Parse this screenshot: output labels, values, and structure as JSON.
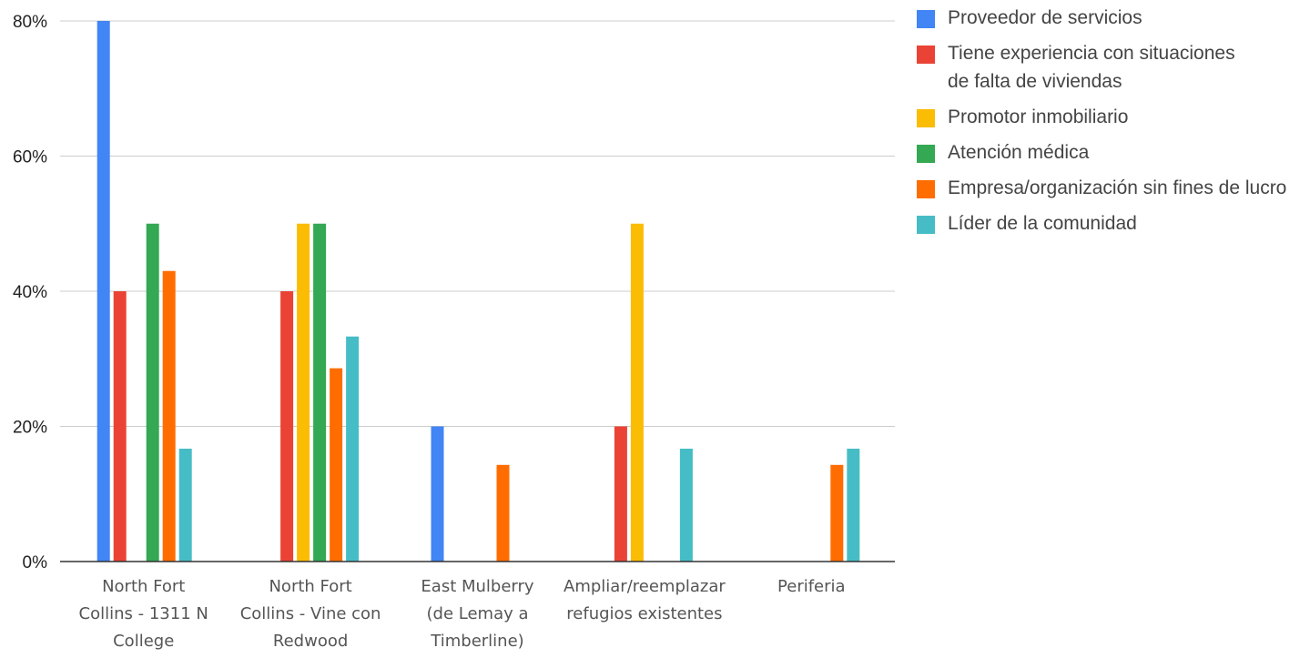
{
  "chart_data": {
    "type": "bar",
    "title": "",
    "xlabel": "",
    "ylabel": "",
    "ylim": [
      0,
      80
    ],
    "yticks": [
      {
        "value": 0,
        "label": "0%"
      },
      {
        "value": 20,
        "label": "20%"
      },
      {
        "value": 40,
        "label": "40%"
      },
      {
        "value": 60,
        "label": "60%"
      },
      {
        "value": 80,
        "label": "80%"
      }
    ],
    "grid": true,
    "legend_position": "top-right",
    "categories": [
      {
        "name": "North Fort Collins - 1311 N College",
        "lines": [
          "North Fort",
          "Collins - 1311 N",
          "College"
        ]
      },
      {
        "name": "North Fort Collins - Vine con Redwood",
        "lines": [
          "North Fort",
          "Collins - Vine con",
          "Redwood"
        ]
      },
      {
        "name": "East Mulberry (de Lemay a Timberline)",
        "lines": [
          "East Mulberry",
          "(de Lemay a",
          "Timberline)"
        ]
      },
      {
        "name": "Ampliar/reemplazar refugios existentes",
        "lines": [
          "Ampliar/reemplazar",
          "refugios existentes"
        ]
      },
      {
        "name": "Periferia",
        "lines": [
          "Periferia"
        ]
      }
    ],
    "series": [
      {
        "name": "Proveedor de servicios",
        "legend_lines": [
          "Proveedor de servicios"
        ],
        "color": "#4285F4",
        "values": [
          80,
          0,
          20,
          0,
          0
        ]
      },
      {
        "name": "Tiene experiencia con situaciones de falta de viviendas",
        "legend_lines": [
          "Tiene experiencia con situaciones",
          "de falta de viviendas"
        ],
        "color": "#EA4335",
        "values": [
          40,
          40,
          0,
          20,
          0
        ]
      },
      {
        "name": "Promotor inmobiliario",
        "legend_lines": [
          "Promotor inmobiliario"
        ],
        "color": "#FBBC04",
        "values": [
          0,
          50,
          0,
          50,
          0
        ]
      },
      {
        "name": "Atención médica",
        "legend_lines": [
          "Atención médica"
        ],
        "color": "#34A853",
        "values": [
          50,
          50,
          0,
          0,
          0
        ]
      },
      {
        "name": "Empresa/organización sin fines de lucro",
        "legend_lines": [
          "Empresa/organización sin fines de lucro"
        ],
        "color": "#FF6D01",
        "values": [
          43,
          28.6,
          14.3,
          0,
          14.3
        ]
      },
      {
        "name": "Líder de la comunidad",
        "legend_lines": [
          "Líder de la comunidad"
        ],
        "color": "#46BDC6",
        "values": [
          16.7,
          33.3,
          0,
          16.7,
          16.7
        ]
      }
    ]
  }
}
